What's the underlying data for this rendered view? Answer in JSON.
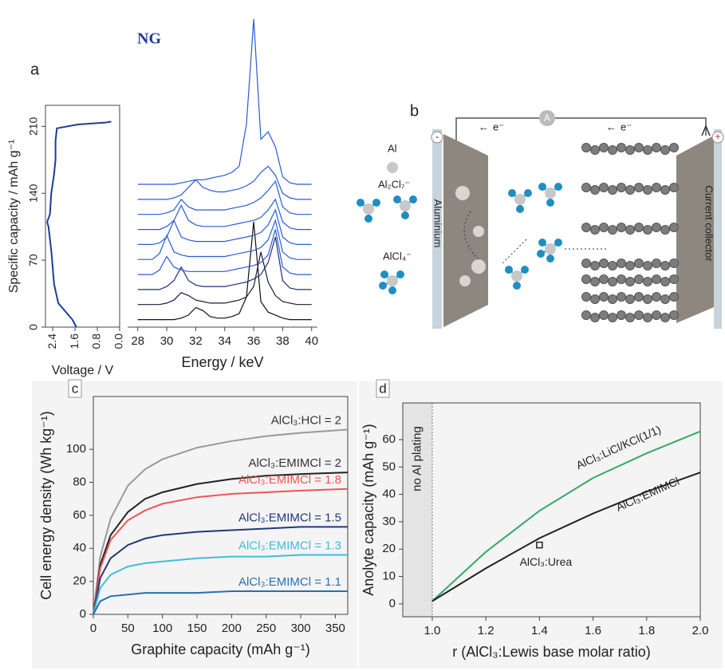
{
  "chart_data": [
    {
      "type": "line",
      "panel": "a",
      "xlabel": "Voltage / V",
      "ylabel": "Specific capacity / mAh g⁻¹",
      "xlim": [
        2.66,
        0
      ],
      "xticks": [
        2.4,
        1.6,
        0.8,
        {
          "value": 0,
          "label": "0.0"
        }
      ],
      "ylim": [
        0,
        232
      ],
      "yticks": [
        0,
        70,
        140,
        210
      ],
      "series": [
        {
          "color": "#1a3d9c",
          "x": [
            1.55,
            1.7,
            2.2,
            2.35,
            2.45,
            2.55,
            2.6,
            2.5,
            2.45,
            2.35,
            2.3,
            2.3,
            2.25,
            1.5,
            0.5,
            0.3
          ],
          "values": [
            0,
            8,
            25,
            45,
            80,
            105,
            110,
            118,
            140,
            160,
            175,
            195,
            208,
            212,
            214,
            215
          ]
        }
      ]
    },
    {
      "type": "line",
      "title": "NG",
      "xlabel": "Energy / keV",
      "xlim": [
        27.3,
        40.4
      ],
      "xticks": [
        28,
        30,
        32,
        34,
        36,
        38,
        40
      ],
      "ylim": [
        -0.5,
        21
      ],
      "x": [
        28,
        28.5,
        29,
        29.5,
        30,
        30.5,
        31,
        31.5,
        32,
        32.5,
        33,
        33.5,
        34,
        34.5,
        35,
        35.5,
        36,
        36.5,
        37,
        37.5,
        38,
        38.5,
        39,
        39.5,
        40
      ],
      "series": [
        {
          "color": "#111111",
          "values": [
            0,
            0,
            0,
            0,
            0,
            0,
            0.1,
            0.3,
            0.8,
            0.6,
            0.2,
            0.1,
            0.1,
            0.2,
            0.4,
            1.5,
            6.5,
            1.2,
            0.5,
            0.3,
            0.1,
            0,
            0,
            0,
            0
          ]
        },
        {
          "color": "#1a1a40",
          "values": [
            1,
            1,
            1,
            1,
            1.1,
            1.3,
            1.8,
            1.6,
            1.3,
            1.2,
            1.1,
            1.1,
            1.1,
            1.2,
            1.3,
            1.5,
            2.2,
            4.5,
            2.5,
            1.6,
            1.2,
            1.1,
            1,
            1,
            1
          ]
        },
        {
          "color": "#1e2f7a",
          "values": [
            2,
            2,
            2,
            2,
            2.2,
            2.6,
            3.5,
            2.6,
            2.3,
            2.2,
            2.2,
            2.2,
            2.2,
            2.3,
            2.4,
            2.5,
            2.7,
            3,
            3.8,
            5.5,
            2.6,
            2.1,
            2,
            2,
            2
          ]
        },
        {
          "color": "#2a5bd7",
          "values": [
            3,
            3,
            3,
            3.3,
            4.2,
            3.5,
            3.3,
            3.2,
            3.2,
            3.2,
            3.2,
            3.2,
            3.2,
            3.3,
            3.4,
            3.5,
            3.6,
            3.8,
            4.3,
            6,
            3.5,
            3.1,
            3,
            3,
            3
          ]
        },
        {
          "color": "#2a5bd7",
          "values": [
            4,
            4,
            4,
            4.4,
            5.6,
            4.5,
            4.3,
            4.2,
            4.2,
            4.2,
            4.2,
            4.2,
            4.2,
            4.3,
            4.4,
            4.5,
            4.6,
            4.8,
            5.3,
            6.6,
            4.5,
            4.1,
            4,
            4,
            4
          ]
        },
        {
          "color": "#2a5bd7",
          "values": [
            5,
            5,
            5,
            5.1,
            5.5,
            6.6,
            5.5,
            5.3,
            5.2,
            5.2,
            5.2,
            5.2,
            5.2,
            5.3,
            5.4,
            5.5,
            5.6,
            5.8,
            6.3,
            7.3,
            5.5,
            5.1,
            5,
            5,
            5
          ]
        },
        {
          "color": "#2a5bd7",
          "values": [
            6,
            6,
            6,
            6,
            6.2,
            6.6,
            7.6,
            6.6,
            6.3,
            6.2,
            6.2,
            6.2,
            6.2,
            6.3,
            6.4,
            6.5,
            6.6,
            6.8,
            7.3,
            8,
            6.5,
            6.1,
            6,
            6,
            6
          ]
        },
        {
          "color": "#2a5bd7",
          "values": [
            7,
            7,
            7,
            7,
            7.1,
            7.3,
            8,
            7.5,
            7.3,
            7.3,
            7.3,
            7.3,
            7.3,
            7.4,
            7.5,
            7.6,
            7.8,
            8.1,
            8.6,
            9.2,
            7.5,
            7.1,
            7,
            7,
            7
          ]
        },
        {
          "color": "#2a5bd7",
          "values": [
            8,
            8,
            8,
            8,
            8,
            8.1,
            8.3,
            8.8,
            9.3,
            8.8,
            8.6,
            8.5,
            8.5,
            8.6,
            8.7,
            8.9,
            9.2,
            9.8,
            10.2,
            9.6,
            8.4,
            8.1,
            8,
            8,
            8
          ]
        },
        {
          "color": "#2a5bd7",
          "values": [
            9,
            9,
            9,
            9,
            9,
            9,
            9.1,
            9.2,
            9.3,
            9.3,
            9.4,
            9.5,
            9.6,
            9.8,
            10.2,
            13,
            20,
            12,
            12.5,
            11.5,
            9.5,
            9.1,
            9,
            9,
            9
          ]
        }
      ]
    },
    {
      "type": "line",
      "panel": "c",
      "xlabel": "Graphite capacity (mAh g⁻¹)",
      "ylabel": "Cell energy density (Wh kg⁻¹)",
      "xlim": [
        0,
        368
      ],
      "xticks": [
        0,
        50,
        100,
        150,
        200,
        250,
        300,
        350
      ],
      "ylim": [
        0,
        132
      ],
      "yticks": [
        0,
        20,
        40,
        60,
        80,
        100
      ],
      "x": [
        0,
        10,
        25,
        50,
        75,
        100,
        150,
        200,
        250,
        300,
        368
      ],
      "series": [
        {
          "name": "AlCl₃:HCl = 2",
          "color": "#999999",
          "values": [
            0,
            35,
            58,
            78,
            88,
            94,
            101,
            105,
            108,
            110,
            112
          ]
        },
        {
          "name": "AlCl₃:EMIMCl = 2",
          "color": "#222222",
          "values": [
            0,
            30,
            48,
            62,
            70,
            74,
            79,
            82,
            84,
            85,
            86
          ]
        },
        {
          "name": "AlCl₃:EMIMCl = 1.8",
          "color": "#ee5555",
          "values": [
            0,
            28,
            45,
            57,
            63,
            67,
            71,
            73,
            74,
            75,
            76
          ]
        },
        {
          "name": "AlCl₃:EMIMCl = 1.5",
          "color": "#1f3a7a",
          "values": [
            0,
            22,
            34,
            42,
            46,
            48,
            50,
            51,
            52,
            53,
            53
          ]
        },
        {
          "name": "AlCl₃:EMIMCl = 1.3",
          "color": "#44bbdd",
          "values": [
            0,
            16,
            24,
            29,
            31,
            32,
            34,
            35,
            35,
            36,
            36
          ]
        },
        {
          "name": "AlCl₃:EMIMCl = 1.1",
          "color": "#2a6fb0",
          "values": [
            0,
            8,
            11,
            12,
            13,
            13,
            13,
            14,
            14,
            14,
            14
          ]
        }
      ]
    },
    {
      "type": "line",
      "panel": "d",
      "xlabel": "r (AlCl₃:Lewis base molar ratio)",
      "ylabel": "Anolyte capacity (mAh g⁻¹)",
      "xlim": [
        0.89,
        2.0
      ],
      "xticks": [
        {
          "value": 1,
          "label": "1.0"
        },
        1.2,
        1.4,
        1.6,
        1.8,
        {
          "value": 2,
          "label": "2.0"
        }
      ],
      "ylim": [
        -4.7,
        73.4
      ],
      "yticks": [
        0,
        10,
        20,
        30,
        40,
        50,
        60
      ],
      "x": [
        1.0,
        1.2,
        1.4,
        1.6,
        1.8,
        2.0
      ],
      "series": [
        {
          "name": "AlCl₃:LiCl/KCl(1/1)",
          "color": "#33aa66",
          "values": [
            1,
            19,
            34,
            46,
            55,
            63
          ]
        },
        {
          "name": "AlCl₃:EMIMCl",
          "color": "#222222",
          "values": [
            1,
            13,
            24,
            33,
            41,
            48
          ]
        }
      ],
      "points": [
        {
          "name": "AlCl₃:Urea",
          "x": 1.4,
          "y": 21.5
        }
      ],
      "annotation": {
        "text": "no Al plating",
        "x": 1.0
      }
    }
  ],
  "diagram": {
    "panel": "b",
    "ammeter": "A",
    "electron_left": "e⁻",
    "electron_right": "e⁻",
    "anode_sign": "-",
    "cathode_sign": "+",
    "species": [
      "Al",
      "Al₂Cl₇⁻",
      "AlCl₄⁻"
    ],
    "anode": "Aluminium",
    "cathode": "Current collector"
  }
}
